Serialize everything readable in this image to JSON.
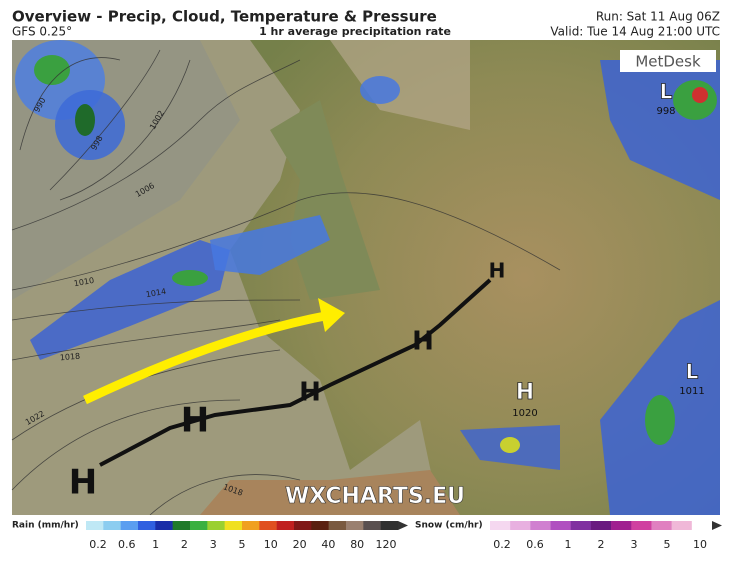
{
  "header": {
    "title": "Overview - Precip, Cloud, Temperature & Pressure",
    "model": "GFS 0.25°",
    "subtitle": "1 hr average precipitation rate",
    "run": "Run: Sat 11 Aug 06Z",
    "valid": "Valid: Tue 14 Aug 21:00 UTC"
  },
  "logo": "MetDesk",
  "watermark": "WXCHARTS.EU",
  "pressure_centers": [
    {
      "label": "H"
    },
    {
      "label": "H"
    },
    {
      "label": "H"
    },
    {
      "label": "H"
    },
    {
      "label": "H"
    },
    {
      "label": "H",
      "value": "1020"
    },
    {
      "label": "L",
      "value": "998"
    },
    {
      "label": "L",
      "value": "1011"
    }
  ],
  "isobar_labels": [
    "990",
    "998",
    "1002",
    "1006",
    "1010",
    "1014",
    "1018",
    "1022",
    "1018"
  ],
  "legend": {
    "rain": {
      "title": "Rain (mm/hr)",
      "ticks": [
        "0.2",
        "0.6",
        "1",
        "2",
        "3",
        "5",
        "10",
        "20",
        "40",
        "80",
        "120"
      ]
    },
    "snow": {
      "title": "Snow (cm/hr)",
      "ticks": [
        "0.2",
        "0.6",
        "1",
        "2",
        "3",
        "5",
        "10"
      ]
    }
  }
}
